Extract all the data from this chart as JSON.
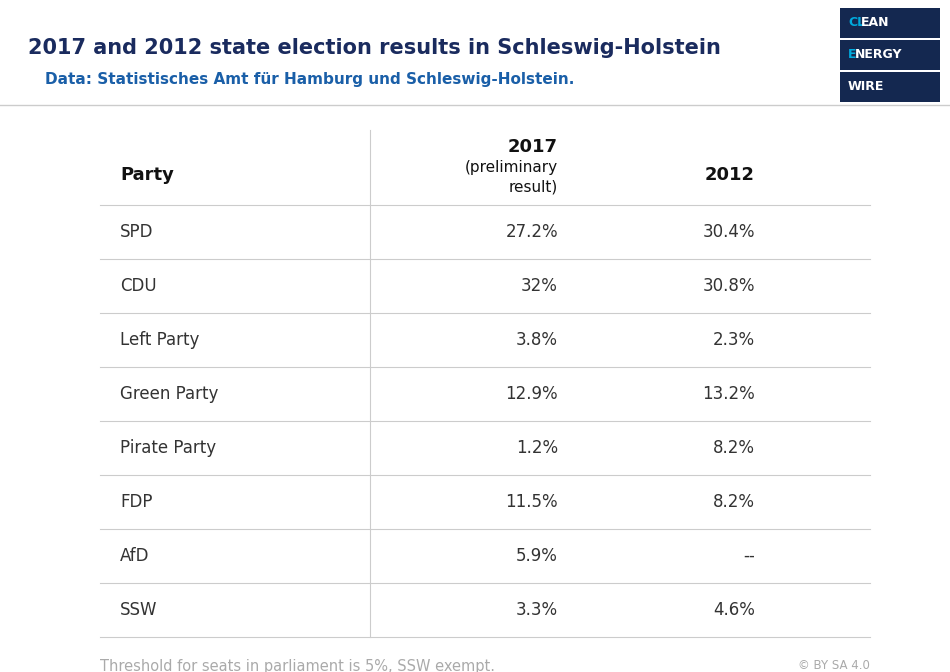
{
  "title": "2017 and 2012 state election results in Schleswig-Holstein",
  "subtitle": "Data: Statistisches Amt für Hamburg und Schleswig-Holstein.",
  "title_color": "#1a2b5e",
  "subtitle_color": "#1a5fa8",
  "parties": [
    "SPD",
    "CDU",
    "Left Party",
    "Green Party",
    "Pirate Party",
    "FDP",
    "AfD",
    "SSW"
  ],
  "values_2017": [
    "27.2%",
    "32%",
    "3.8%",
    "12.9%",
    "1.2%",
    "11.5%",
    "5.9%",
    "3.3%"
  ],
  "values_2012": [
    "30.4%",
    "30.8%",
    "2.3%",
    "13.2%",
    "8.2%",
    "8.2%",
    "--",
    "4.6%"
  ],
  "footer_text": "Threshold for seats in parliament is 5%, SSW exempt.",
  "footer_color": "#aaaaaa",
  "bg_color": "#ffffff",
  "table_text_color": "#333333",
  "header_text_color": "#111111",
  "line_color": "#cccccc",
  "logo_dark": "#142850",
  "logo_cyan": "#00aadd"
}
